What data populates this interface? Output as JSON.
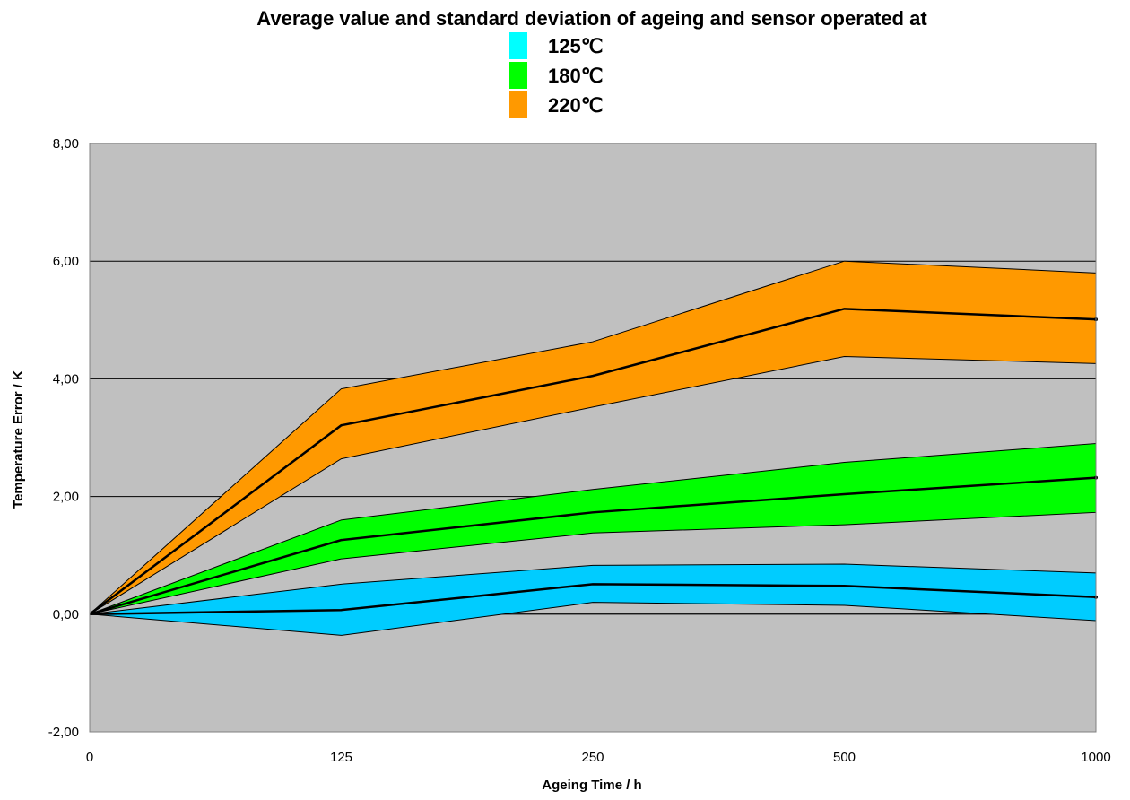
{
  "chart_data": {
    "type": "area",
    "title": "Average value and standard deviation of ageing and sensor operated at",
    "xlabel": "Ageing Time / h",
    "ylabel": "Temperature Error / K",
    "categories": [
      "0",
      "125",
      "250",
      "500",
      "1000"
    ],
    "ylim": [
      -2,
      8
    ],
    "yticks": [
      "-2,00",
      "0,00",
      "2,00",
      "4,00",
      "6,00",
      "8,00"
    ],
    "grid": true,
    "legend_position": "top-center",
    "series": [
      {
        "name": "125℃",
        "color": "#00ccff",
        "legend_color": "#00ffff",
        "mean": [
          0.0,
          0.07,
          0.51,
          0.48,
          0.29
        ],
        "upper": [
          0.0,
          0.51,
          0.83,
          0.85,
          0.7
        ],
        "lower": [
          0.0,
          -0.36,
          0.2,
          0.15,
          -0.11
        ]
      },
      {
        "name": "180℃",
        "color": "#00ff00",
        "legend_color": "#00ff00",
        "mean": [
          0.0,
          1.26,
          1.73,
          2.04,
          2.32
        ],
        "upper": [
          0.0,
          1.6,
          2.12,
          2.58,
          2.9
        ],
        "lower": [
          0.0,
          0.94,
          1.38,
          1.52,
          1.73
        ]
      },
      {
        "name": "220℃",
        "color": "#ff9900",
        "legend_color": "#ff9900",
        "mean": [
          0.0,
          3.21,
          4.05,
          5.19,
          5.01
        ],
        "upper": [
          0.0,
          3.83,
          4.63,
          6.0,
          5.8
        ],
        "lower": [
          0.0,
          2.64,
          3.52,
          4.38,
          4.26
        ]
      }
    ]
  }
}
